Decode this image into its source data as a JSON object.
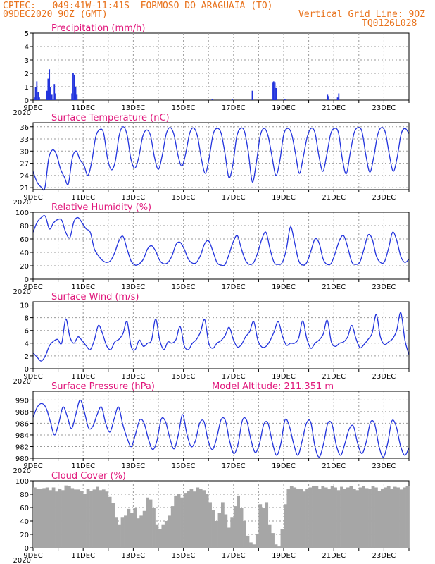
{
  "header": {
    "line1": "CPTEC:   049:41W-11:41S  FORMOSO DO ARAGUAIA (TO)",
    "line2": "09DEC2020 9OZ (GMT)",
    "grid_note": "Vertical Grid Line: 9OZ",
    "code": "TQ0126L028"
  },
  "colors": {
    "header": "#e8711a",
    "title": "#e0157a",
    "series": "#2233dd",
    "cloud": "#a6a6a6"
  },
  "x_ticks": [
    "9DEC",
    "11DEC",
    "13DEC",
    "15DEC",
    "17DEC",
    "19DEC",
    "21DEC",
    "23DEC"
  ],
  "year_label": "2020",
  "chart_data": [
    {
      "type": "bar",
      "title": "Precipitation (mm/h)",
      "ylim": [
        0,
        5
      ],
      "yticks": [
        "0",
        "1",
        "2",
        "3",
        "4",
        "5"
      ],
      "x": [
        0.05,
        0.1,
        0.15,
        0.2,
        0.25,
        0.55,
        0.6,
        0.65,
        0.7,
        0.75,
        0.85,
        0.9,
        1.55,
        1.6,
        1.65,
        1.7,
        1.75,
        7.15,
        7.95,
        8.75,
        9.55,
        9.6,
        9.65,
        9.7,
        10.05,
        11.75,
        11.8,
        12.15,
        12.2
      ],
      "values": [
        0.2,
        1.0,
        1.4,
        0.6,
        0.2,
        0.7,
        1.6,
        2.3,
        1.0,
        0.4,
        1.2,
        0.5,
        0.5,
        2.0,
        1.9,
        1.0,
        0.4,
        0.1,
        0.1,
        0.7,
        1.3,
        1.4,
        1.3,
        0.9,
        0.1,
        0.4,
        0.3,
        0.2,
        0.5
      ]
    },
    {
      "type": "line",
      "title": "Surface Temperature (nC)",
      "ylim": [
        20.5,
        37
      ],
      "yticks": [
        "21",
        "24",
        "27",
        "30",
        "33",
        "36"
      ],
      "series": [
        {
          "values": [
            25.0,
            22.4,
            21.2,
            20.9,
            28.2,
            30.3,
            29.1,
            25.6,
            23.6,
            21.9,
            28.2,
            30.0,
            27.8,
            26.5,
            24.0,
            27.5,
            33.5,
            35.3,
            34.5,
            28.3,
            25.4,
            27.5,
            33.9,
            36.0,
            34.0,
            28.0,
            25.8,
            28.5,
            33.6,
            35.2,
            33.8,
            28.5,
            25.5,
            29.0,
            34.2,
            35.8,
            34.0,
            29.0,
            26.3,
            29.5,
            34.4,
            35.7,
            33.6,
            28.0,
            24.5,
            28.5,
            34.2,
            35.6,
            34.5,
            29.5,
            23.5,
            26.5,
            33.5,
            35.6,
            34.8,
            29.5,
            22.4,
            27.0,
            33.7,
            35.6,
            33.8,
            28.8,
            24.0,
            27.5,
            34.0,
            35.6,
            34.3,
            29.5,
            24.5,
            28.5,
            33.4,
            35.6,
            34.5,
            28.8,
            25.0,
            29.0,
            34.2,
            35.6,
            34.5,
            28.0,
            24.4,
            29.5,
            34.5,
            35.8,
            34.8,
            29.0,
            24.8,
            28.5,
            34.0,
            35.8,
            34.5,
            29.0,
            25.0,
            28.5,
            34.2,
            35.6,
            34.3
          ]
        }
      ]
    },
    {
      "type": "line",
      "title": "Relative Humidity (%)",
      "ylim": [
        0,
        100
      ],
      "yticks": [
        "0",
        "20",
        "40",
        "60",
        "80",
        "100"
      ],
      "series": [
        {
          "values": [
            70,
            85,
            92,
            94,
            75,
            84,
            89,
            88,
            70,
            62,
            86,
            92,
            84,
            75,
            70,
            45,
            35,
            28,
            25,
            28,
            40,
            57,
            64,
            45,
            27,
            21,
            23,
            30,
            45,
            50,
            42,
            28,
            23,
            25,
            35,
            52,
            55,
            45,
            30,
            24,
            25,
            36,
            53,
            57,
            42,
            25,
            21,
            22,
            38,
            56,
            65,
            45,
            28,
            22,
            25,
            40,
            60,
            70,
            45,
            25,
            22,
            25,
            45,
            78,
            55,
            28,
            21,
            25,
            42,
            60,
            54,
            30,
            22,
            24,
            40,
            58,
            65,
            48,
            26,
            22,
            26,
            45,
            66,
            60,
            35,
            25,
            26,
            46,
            70,
            58,
            34,
            25,
            30
          ]
        }
      ]
    },
    {
      "type": "line",
      "title": "Surface Wind (m/s)",
      "ylim": [
        0,
        10.5
      ],
      "yticks": [
        "0",
        "2",
        "4",
        "6",
        "8",
        "10"
      ],
      "series": [
        {
          "values": [
            2.5,
            1.8,
            1.2,
            2.0,
            3.6,
            4.3,
            4.6,
            4.0,
            7.8,
            5.0,
            4.0,
            5.0,
            4.4,
            3.6,
            3.0,
            4.5,
            6.8,
            5.5,
            3.6,
            3.0,
            4.2,
            4.6,
            5.5,
            7.4,
            3.5,
            3.0,
            4.5,
            3.5,
            4.0,
            4.5,
            7.8,
            4.5,
            3.0,
            4.2,
            4.0,
            4.6,
            6.6,
            3.6,
            3.0,
            4.0,
            4.6,
            5.8,
            7.7,
            4.0,
            3.2,
            4.0,
            4.4,
            5.2,
            6.5,
            4.6,
            3.4,
            3.8,
            5.0,
            5.8,
            7.4,
            4.5,
            3.4,
            3.5,
            4.4,
            5.8,
            7.4,
            5.2,
            3.7,
            4.0,
            4.0,
            4.8,
            7.5,
            4.7,
            3.2,
            4.0,
            4.5,
            5.4,
            7.6,
            4.2,
            3.5,
            4.0,
            4.2,
            5.0,
            6.8,
            4.8,
            3.3,
            3.8,
            4.6,
            5.6,
            8.5,
            5.0,
            3.8,
            4.2,
            4.7,
            6.0,
            8.8,
            4.5,
            2.2
          ]
        }
      ]
    },
    {
      "type": "line",
      "title": "Surface Pressure (hPa)",
      "annotation": "Model Altitude: 211.351 m",
      "ylim": [
        980,
        991.5
      ],
      "yticks": [
        "980",
        "982",
        "984",
        "986",
        "988",
        "990"
      ],
      "series": [
        {
          "values": [
            987.0,
            988.8,
            989.4,
            988.7,
            986.4,
            984.0,
            986.0,
            988.8,
            987.2,
            985.1,
            987.5,
            990.0,
            988.0,
            985.2,
            985.5,
            987.5,
            988.8,
            986.0,
            984.5,
            986.8,
            988.8,
            985.8,
            983.5,
            982.0,
            984.2,
            986.6,
            986.0,
            983.3,
            981.5,
            983.0,
            986.7,
            986.3,
            983.5,
            981.6,
            984.0,
            987.5,
            984.2,
            982.0,
            983.0,
            986.0,
            986.3,
            983.0,
            981.5,
            983.5,
            986.6,
            986.5,
            983.0,
            980.8,
            982.5,
            986.5,
            986.5,
            983.2,
            981.0,
            982.5,
            985.8,
            986.0,
            982.8,
            980.5,
            982.5,
            986.6,
            985.5,
            982.5,
            980.5,
            983.0,
            986.0,
            986.2,
            982.0,
            980.2,
            982.5,
            986.0,
            985.8,
            982.2,
            980.5,
            982.5,
            985.0,
            985.5,
            982.5,
            980.8,
            982.8,
            986.2,
            985.8,
            982.0,
            980.2,
            982.5,
            986.4,
            985.5,
            982.2,
            980.5,
            981.8
          ]
        }
      ]
    },
    {
      "type": "bar",
      "title": "Cloud Cover (%)",
      "ylim": [
        0,
        100
      ],
      "yticks": [
        "0",
        "20",
        "40",
        "60",
        "80",
        "100"
      ],
      "series": [
        {
          "values": [
            90,
            88,
            88,
            89,
            90,
            86,
            90,
            84,
            88,
            86,
            93,
            92,
            89,
            87,
            87,
            85,
            80,
            88,
            85,
            87,
            91,
            86,
            87,
            84,
            76,
            67,
            45,
            35,
            45,
            48,
            58,
            52,
            60,
            44,
            48,
            55,
            75,
            72,
            60,
            35,
            28,
            35,
            40,
            48,
            62,
            78,
            80,
            75,
            82,
            85,
            88,
            84,
            90,
            88,
            86,
            80,
            68,
            56,
            40,
            52,
            68,
            50,
            30,
            45,
            62,
            78,
            60,
            40,
            18,
            8,
            5,
            20,
            65,
            60,
            68,
            35,
            22,
            5,
            2,
            28,
            65,
            88,
            92,
            90,
            88,
            88,
            84,
            88,
            90,
            92,
            92,
            88,
            92,
            90,
            88,
            92,
            90,
            86,
            91,
            88,
            90,
            92,
            88,
            86,
            90,
            92,
            89,
            88,
            92,
            90,
            85,
            88,
            90,
            92,
            88,
            91,
            90,
            87,
            90,
            92
          ]
        }
      ]
    }
  ]
}
